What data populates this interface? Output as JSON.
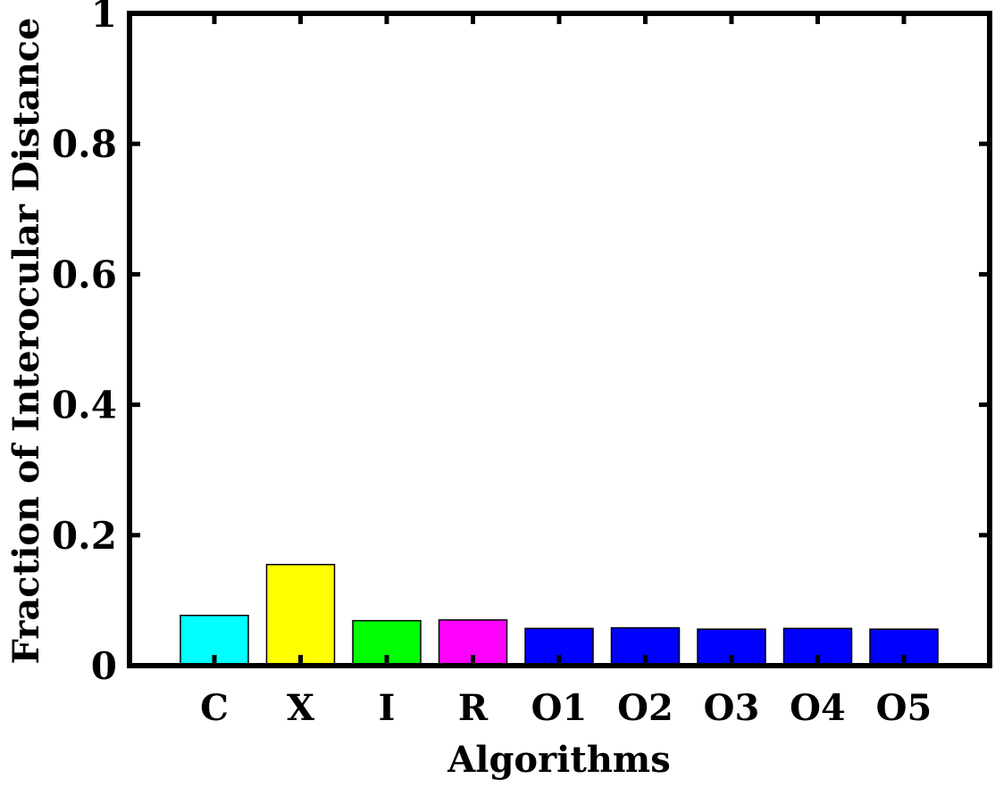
{
  "chart_data": {
    "type": "bar",
    "title": "",
    "xlabel": "Algorithms",
    "ylabel": "Fraction of Interocular Distance",
    "categories": [
      "C",
      "X",
      "I",
      "R",
      "O1",
      "O2",
      "O3",
      "O4",
      "O5"
    ],
    "values": [
      0.077,
      0.155,
      0.069,
      0.07,
      0.057,
      0.058,
      0.056,
      0.057,
      0.056
    ],
    "colors": [
      "#00ffff",
      "#ffff00",
      "#00ff00",
      "#ff00ff",
      "#0000ff",
      "#0000ff",
      "#0000ff",
      "#0000ff",
      "#0000ff"
    ],
    "ylim": [
      0,
      1
    ],
    "yticks": [
      0,
      0.2,
      0.4,
      0.6,
      0.8,
      1
    ],
    "ytick_labels": [
      "0",
      "0.2",
      "0.4",
      "0.6",
      "0.8",
      "1"
    ],
    "grid": false,
    "legend": "none"
  }
}
